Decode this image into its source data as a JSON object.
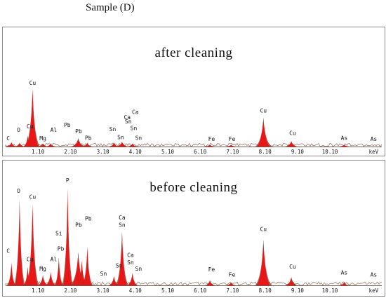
{
  "figure": {
    "title": "Sample (D)"
  },
  "colors": {
    "peak_fill": "#e81616",
    "peak_shadow": "#8a3a2a",
    "baseline_noise": "#9a7a6a",
    "frame": "#8a8a8a"
  },
  "chart_data": [
    {
      "type": "area",
      "title": "after cleaning",
      "xlabel": "keV",
      "x_ticks": [
        "1.10",
        "2.10",
        "3.10",
        "4.10",
        "5.10",
        "6.10",
        "7.10",
        "8.10",
        "9.10",
        "10.10",
        "keV"
      ],
      "xlim": [
        0.1,
        11.7
      ],
      "ylim": [
        0,
        100
      ],
      "peaks": [
        {
          "x": 0.28,
          "y": 7,
          "w": 0.06
        },
        {
          "x": 0.53,
          "y": 6,
          "w": 0.06
        },
        {
          "x": 0.93,
          "y": 95,
          "w": 0.08
        },
        {
          "x": 0.78,
          "y": 18,
          "w": 0.05
        },
        {
          "x": 1.25,
          "y": 5,
          "w": 0.06
        },
        {
          "x": 1.49,
          "y": 5,
          "w": 0.06
        },
        {
          "x": 2.34,
          "y": 14,
          "w": 0.08
        },
        {
          "x": 2.62,
          "y": 6,
          "w": 0.06
        },
        {
          "x": 3.44,
          "y": 6,
          "w": 0.06
        },
        {
          "x": 3.69,
          "y": 8,
          "w": 0.07
        },
        {
          "x": 4.01,
          "y": 5,
          "w": 0.06
        },
        {
          "x": 6.4,
          "y": 3,
          "w": 0.06
        },
        {
          "x": 7.05,
          "y": 3,
          "w": 0.06
        },
        {
          "x": 8.05,
          "y": 48,
          "w": 0.09
        },
        {
          "x": 8.91,
          "y": 9,
          "w": 0.07
        },
        {
          "x": 10.54,
          "y": 3,
          "w": 0.06
        }
      ],
      "labels": [
        {
          "text": "C",
          "x": 0.18,
          "y": 8
        },
        {
          "text": "O",
          "x": 0.5,
          "y": 22
        },
        {
          "text": "Cu",
          "x": 0.93,
          "y": 100
        },
        {
          "text": "Cu",
          "x": 0.85,
          "y": 28
        },
        {
          "text": "Mg",
          "x": 1.25,
          "y": 8
        },
        {
          "text": "Al",
          "x": 1.58,
          "y": 22
        },
        {
          "text": "Pb",
          "x": 2.0,
          "y": 30
        },
        {
          "text": "Pb",
          "x": 2.35,
          "y": 20
        },
        {
          "text": "Pb",
          "x": 2.65,
          "y": 9
        },
        {
          "text": "Sn",
          "x": 3.4,
          "y": 23
        },
        {
          "text": "Sn",
          "x": 3.65,
          "y": 10
        },
        {
          "text": "Ca",
          "x": 3.85,
          "y": 43
        },
        {
          "text": "Sn",
          "x": 3.88,
          "y": 36
        },
        {
          "text": "Ca",
          "x": 4.1,
          "y": 52
        },
        {
          "text": "Sn",
          "x": 4.05,
          "y": 25
        },
        {
          "text": "Sn",
          "x": 4.2,
          "y": 9
        },
        {
          "text": "Fe",
          "x": 6.45,
          "y": 7
        },
        {
          "text": "Fe",
          "x": 7.08,
          "y": 7
        },
        {
          "text": "Cu",
          "x": 8.05,
          "y": 54
        },
        {
          "text": "Cu",
          "x": 8.95,
          "y": 17
        },
        {
          "text": "As",
          "x": 10.54,
          "y": 9
        },
        {
          "text": "As",
          "x": 11.45,
          "y": 7
        }
      ]
    },
    {
      "type": "area",
      "title": "before cleaning",
      "xlabel": "keV",
      "x_ticks": [
        "1.10",
        "2.10",
        "3.10",
        "4.10",
        "5.10",
        "6.10",
        "7.10",
        "8.10",
        "9.10",
        "10.10",
        "keV"
      ],
      "xlim": [
        0.1,
        11.7
      ],
      "ylim": [
        0,
        100
      ],
      "peaks": [
        {
          "x": 0.28,
          "y": 22,
          "w": 0.05
        },
        {
          "x": 0.53,
          "y": 83,
          "w": 0.06
        },
        {
          "x": 0.93,
          "y": 78,
          "w": 0.07
        },
        {
          "x": 0.78,
          "y": 18,
          "w": 0.05
        },
        {
          "x": 1.25,
          "y": 10,
          "w": 0.06
        },
        {
          "x": 1.49,
          "y": 13,
          "w": 0.06
        },
        {
          "x": 1.74,
          "y": 27,
          "w": 0.05
        },
        {
          "x": 2.01,
          "y": 93,
          "w": 0.06
        },
        {
          "x": 2.34,
          "y": 32,
          "w": 0.09
        },
        {
          "x": 2.45,
          "y": 24,
          "w": 0.06
        },
        {
          "x": 2.62,
          "y": 37,
          "w": 0.06
        },
        {
          "x": 3.44,
          "y": 9,
          "w": 0.06
        },
        {
          "x": 3.69,
          "y": 52,
          "w": 0.07
        },
        {
          "x": 4.01,
          "y": 12,
          "w": 0.06
        },
        {
          "x": 6.4,
          "y": 5,
          "w": 0.06
        },
        {
          "x": 7.05,
          "y": 3,
          "w": 0.06
        },
        {
          "x": 8.05,
          "y": 44,
          "w": 0.09
        },
        {
          "x": 8.91,
          "y": 8,
          "w": 0.07
        },
        {
          "x": 10.54,
          "y": 3,
          "w": 0.06
        }
      ],
      "labels": [
        {
          "text": "C",
          "x": 0.18,
          "y": 30
        },
        {
          "text": "O",
          "x": 0.5,
          "y": 88
        },
        {
          "text": "Cu",
          "x": 0.93,
          "y": 82
        },
        {
          "text": "Cu",
          "x": 0.85,
          "y": 22
        },
        {
          "text": "Mg",
          "x": 1.25,
          "y": 13
        },
        {
          "text": "Al",
          "x": 1.58,
          "y": 22
        },
        {
          "text": "Si",
          "x": 1.74,
          "y": 47
        },
        {
          "text": "Pb",
          "x": 1.8,
          "y": 32
        },
        {
          "text": "P",
          "x": 2.01,
          "y": 98
        },
        {
          "text": "Pb",
          "x": 2.35,
          "y": 55
        },
        {
          "text": "Pb",
          "x": 2.65,
          "y": 61
        },
        {
          "text": "Sn",
          "x": 3.12,
          "y": 8
        },
        {
          "text": "Sn",
          "x": 3.6,
          "y": 16
        },
        {
          "text": "Ca",
          "x": 3.69,
          "y": 62
        },
        {
          "text": "Sn",
          "x": 3.69,
          "y": 55
        },
        {
          "text": "Ca",
          "x": 3.95,
          "y": 26
        },
        {
          "text": "Sn",
          "x": 3.95,
          "y": 19
        },
        {
          "text": "Sn",
          "x": 4.2,
          "y": 13
        },
        {
          "text": "Fe",
          "x": 6.45,
          "y": 12
        },
        {
          "text": "Fe",
          "x": 7.08,
          "y": 7
        },
        {
          "text": "Cu",
          "x": 8.05,
          "y": 51
        },
        {
          "text": "Cu",
          "x": 8.95,
          "y": 15
        },
        {
          "text": "As",
          "x": 10.54,
          "y": 9
        },
        {
          "text": "As",
          "x": 11.45,
          "y": 7
        }
      ]
    }
  ]
}
